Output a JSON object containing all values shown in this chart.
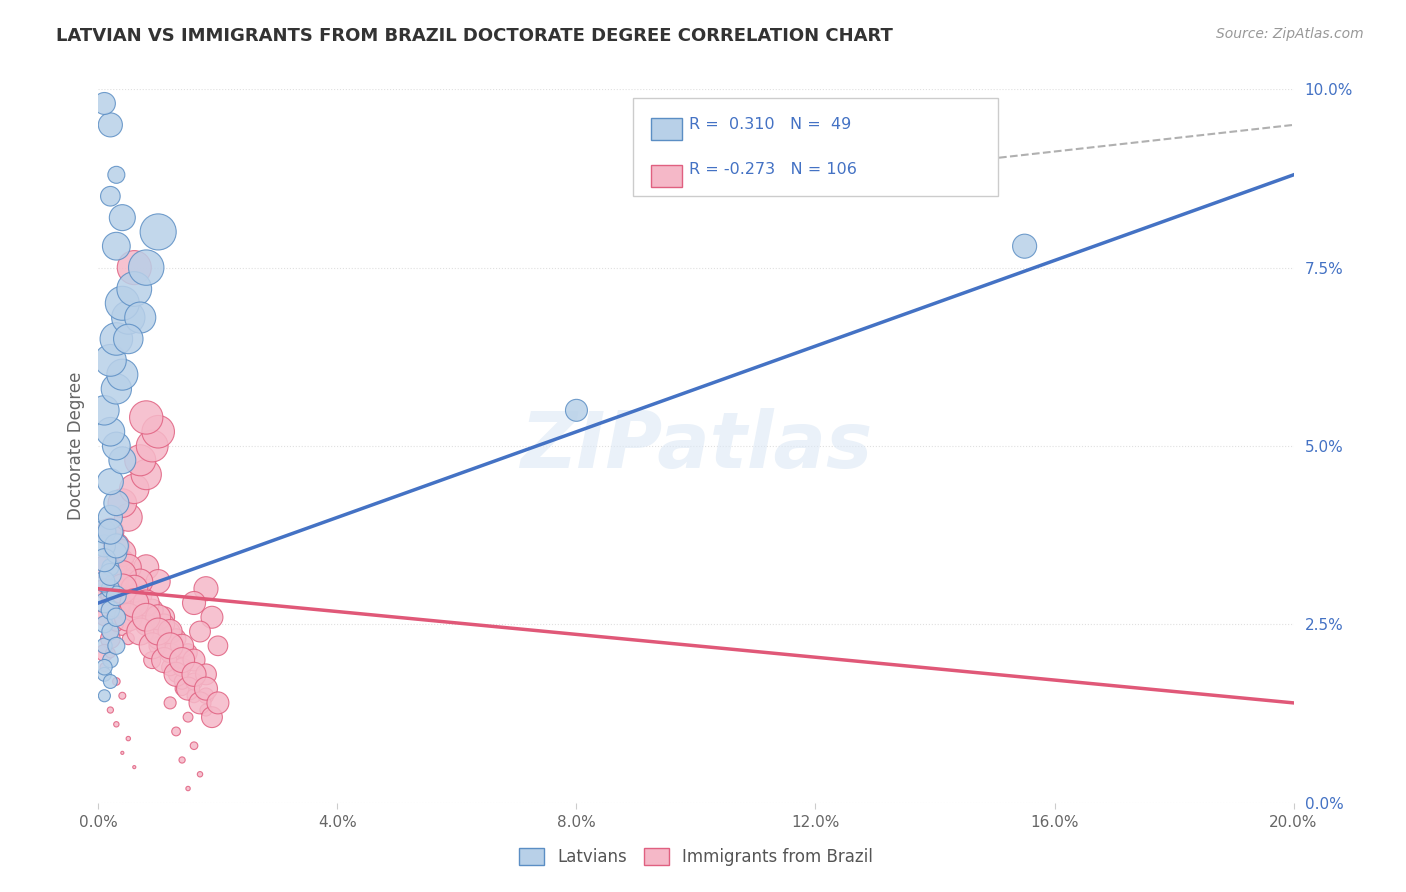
{
  "title": "LATVIAN VS IMMIGRANTS FROM BRAZIL DOCTORATE DEGREE CORRELATION CHART",
  "source": "Source: ZipAtlas.com",
  "ylabel": "Doctorate Degree",
  "xlim": [
    0.0,
    0.2
  ],
  "ylim": [
    0.0,
    0.1
  ],
  "xticks": [
    0.0,
    0.04,
    0.08,
    0.12,
    0.16,
    0.2
  ],
  "xtick_labels": [
    "0.0%",
    "4.0%",
    "8.0%",
    "12.0%",
    "16.0%",
    "20.0%"
  ],
  "ytick_labels_right": [
    "0.0%",
    "2.5%",
    "5.0%",
    "7.5%",
    "10.0%"
  ],
  "yticks_right": [
    0.0,
    0.025,
    0.05,
    0.075,
    0.1
  ],
  "color_latvian_fill": "#b8d0e8",
  "color_brazil_fill": "#f5b8c8",
  "color_latvian_edge": "#5b8ec4",
  "color_brazil_edge": "#e06080",
  "color_latvian_line": "#4472c4",
  "color_brazil_line": "#e05878",
  "color_dashed": "#b0b0b0",
  "background_color": "#ffffff",
  "grid_color": "#e0e0e0",
  "title_color": "#333333",
  "legend_text_color": "#4472c4",
  "blue_line_x0": 0.0,
  "blue_line_y0": 0.028,
  "blue_line_x1": 0.2,
  "blue_line_y1": 0.088,
  "pink_line_x0": 0.0,
  "pink_line_y0": 0.03,
  "pink_line_x1": 0.2,
  "pink_line_y1": 0.014,
  "dash_line_x0": 0.125,
  "dash_line_y0": 0.088,
  "dash_line_x1": 0.2,
  "dash_line_y1": 0.095,
  "latvians_x": [
    0.001,
    0.002,
    0.002,
    0.003,
    0.001,
    0.001,
    0.002,
    0.003,
    0.001,
    0.002,
    0.003,
    0.001,
    0.002,
    0.001,
    0.003,
    0.002,
    0.001,
    0.002,
    0.003,
    0.001,
    0.002,
    0.003,
    0.001,
    0.002,
    0.001,
    0.002,
    0.004,
    0.003,
    0.002,
    0.001,
    0.003,
    0.004,
    0.002,
    0.003,
    0.005,
    0.004,
    0.006,
    0.008,
    0.01,
    0.007,
    0.005,
    0.003,
    0.004,
    0.002,
    0.001,
    0.002,
    0.003,
    0.155,
    0.08
  ],
  "latvians_y": [
    0.028,
    0.03,
    0.033,
    0.035,
    0.036,
    0.038,
    0.04,
    0.042,
    0.025,
    0.027,
    0.029,
    0.031,
    0.032,
    0.034,
    0.036,
    0.038,
    0.022,
    0.024,
    0.026,
    0.018,
    0.02,
    0.022,
    0.015,
    0.017,
    0.019,
    0.045,
    0.048,
    0.05,
    0.052,
    0.055,
    0.058,
    0.06,
    0.062,
    0.065,
    0.068,
    0.07,
    0.072,
    0.075,
    0.08,
    0.068,
    0.065,
    0.078,
    0.082,
    0.095,
    0.098,
    0.085,
    0.088,
    0.078,
    0.055
  ],
  "latvians_size": [
    40,
    35,
    30,
    45,
    50,
    55,
    60,
    65,
    30,
    35,
    40,
    45,
    50,
    55,
    60,
    65,
    25,
    30,
    35,
    20,
    25,
    30,
    15,
    20,
    25,
    70,
    75,
    80,
    85,
    90,
    95,
    100,
    105,
    110,
    115,
    120,
    125,
    130,
    135,
    100,
    90,
    80,
    70,
    60,
    50,
    40,
    30,
    60,
    50
  ],
  "brazil_x": [
    0.001,
    0.002,
    0.003,
    0.001,
    0.004,
    0.002,
    0.005,
    0.003,
    0.006,
    0.004,
    0.002,
    0.001,
    0.003,
    0.001,
    0.003,
    0.002,
    0.004,
    0.003,
    0.005,
    0.002,
    0.001,
    0.003,
    0.004,
    0.002,
    0.003,
    0.005,
    0.004,
    0.006,
    0.003,
    0.002,
    0.005,
    0.004,
    0.006,
    0.008,
    0.007,
    0.009,
    0.01,
    0.008,
    0.006,
    0.011,
    0.012,
    0.01,
    0.009,
    0.013,
    0.014,
    0.012,
    0.015,
    0.013,
    0.016,
    0.014,
    0.017,
    0.015,
    0.018,
    0.016,
    0.019,
    0.017,
    0.02,
    0.006,
    0.008,
    0.01,
    0.007,
    0.009,
    0.011,
    0.013,
    0.015,
    0.012,
    0.014,
    0.016,
    0.018,
    0.004,
    0.005,
    0.007,
    0.003,
    0.006,
    0.008,
    0.01,
    0.012,
    0.014,
    0.016,
    0.018,
    0.004,
    0.006,
    0.008,
    0.01,
    0.012,
    0.014,
    0.016,
    0.018,
    0.003,
    0.005,
    0.007,
    0.009,
    0.011,
    0.013,
    0.015,
    0.017,
    0.019,
    0.004,
    0.006,
    0.008,
    0.01,
    0.012,
    0.014,
    0.016,
    0.018,
    0.02
  ],
  "brazil_y": [
    0.03,
    0.028,
    0.032,
    0.026,
    0.034,
    0.029,
    0.031,
    0.033,
    0.027,
    0.025,
    0.023,
    0.021,
    0.035,
    0.033,
    0.031,
    0.029,
    0.027,
    0.025,
    0.023,
    0.021,
    0.019,
    0.017,
    0.015,
    0.013,
    0.011,
    0.009,
    0.007,
    0.005,
    0.036,
    0.038,
    0.04,
    0.042,
    0.044,
    0.046,
    0.048,
    0.05,
    0.052,
    0.054,
    0.028,
    0.026,
    0.024,
    0.022,
    0.02,
    0.018,
    0.016,
    0.014,
    0.012,
    0.01,
    0.008,
    0.006,
    0.004,
    0.002,
    0.03,
    0.028,
    0.026,
    0.024,
    0.022,
    0.075,
    0.033,
    0.031,
    0.029,
    0.027,
    0.025,
    0.023,
    0.021,
    0.019,
    0.017,
    0.015,
    0.013,
    0.035,
    0.033,
    0.031,
    0.029,
    0.027,
    0.025,
    0.023,
    0.021,
    0.019,
    0.017,
    0.015,
    0.032,
    0.03,
    0.028,
    0.026,
    0.024,
    0.022,
    0.02,
    0.018,
    0.028,
    0.026,
    0.024,
    0.022,
    0.02,
    0.018,
    0.016,
    0.014,
    0.012,
    0.03,
    0.028,
    0.026,
    0.024,
    0.022,
    0.02,
    0.018,
    0.016,
    0.014
  ],
  "brazil_size": [
    40,
    35,
    45,
    30,
    50,
    40,
    55,
    45,
    60,
    50,
    40,
    30,
    65,
    55,
    45,
    35,
    25,
    20,
    15,
    10,
    8,
    6,
    5,
    4,
    3,
    2,
    1,
    1,
    70,
    75,
    80,
    85,
    90,
    95,
    100,
    105,
    110,
    115,
    50,
    45,
    40,
    35,
    30,
    25,
    20,
    15,
    10,
    8,
    6,
    4,
    3,
    2,
    60,
    55,
    50,
    45,
    40,
    120,
    65,
    60,
    55,
    50,
    45,
    40,
    35,
    30,
    25,
    20,
    15,
    75,
    70,
    65,
    60,
    55,
    50,
    45,
    40,
    35,
    30,
    25,
    80,
    75,
    70,
    65,
    60,
    55,
    50,
    45,
    85,
    80,
    75,
    70,
    65,
    60,
    55,
    50,
    45,
    90,
    85,
    80,
    75,
    70,
    65,
    60,
    55,
    50
  ]
}
